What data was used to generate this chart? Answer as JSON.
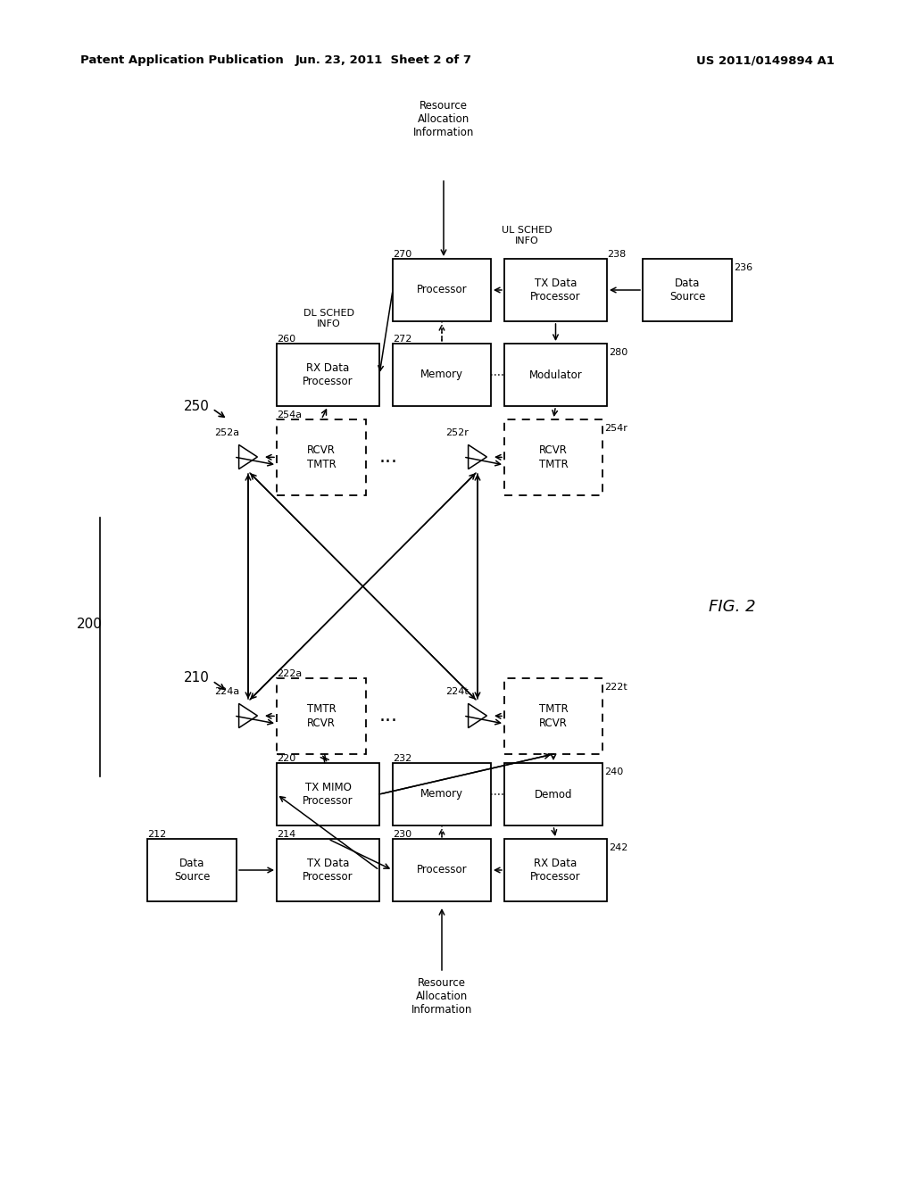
{
  "bg_color": "#ffffff",
  "header_left": "Patent Application Publication",
  "header_mid": "Jun. 23, 2011  Sheet 2 of 7",
  "header_right": "US 2011/0149894 A1",
  "fig_label": "FIG. 2"
}
